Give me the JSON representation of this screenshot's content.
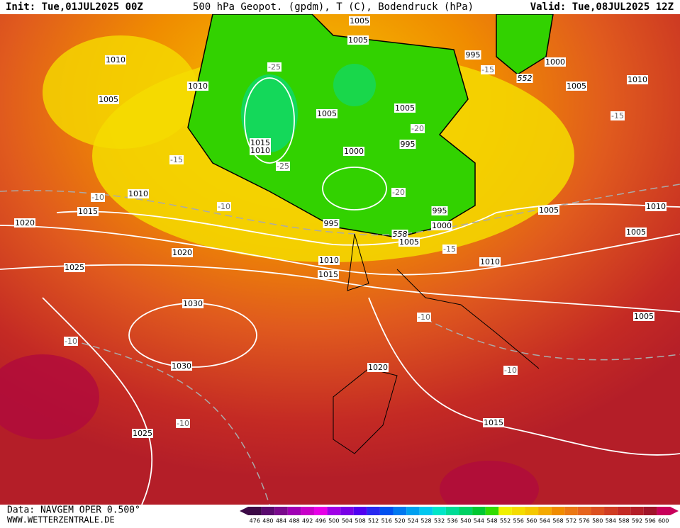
{
  "header": {
    "init": "Init: Tue,01JUL2025 00Z",
    "title": "500 hPa Geopot. (gpdm), T (C), Bodendruck (hPa)",
    "valid": "Valid: Tue,08JUL2025 12Z"
  },
  "map": {
    "isobar_labels": [
      1010,
      1005,
      1010,
      1005,
      1005,
      995,
      1000,
      1005,
      1010,
      1005,
      1015,
      1010,
      1000,
      1005,
      995,
      995,
      1000,
      995,
      1005,
      1010,
      1015,
      1020,
      1020,
      1025,
      1010,
      1015,
      1010,
      1005,
      1010,
      1005,
      1005,
      1030,
      1030,
      1020,
      1015,
      1025
    ],
    "isotherm_labels": [
      -25,
      -20,
      -25,
      -15,
      -10,
      -10,
      -20,
      -15,
      -15,
      -15,
      -10,
      -10,
      -10,
      -10
    ],
    "geopotential_labels": [
      552,
      558
    ]
  },
  "legend": {
    "values": [
      476,
      480,
      484,
      488,
      492,
      496,
      500,
      504,
      508,
      512,
      516,
      520,
      524,
      528,
      532,
      536,
      540,
      544,
      548,
      552,
      556,
      560,
      564,
      568,
      572,
      576,
      580,
      584,
      588,
      592,
      596,
      600
    ],
    "colors": [
      "#3c0a46",
      "#5a0a6e",
      "#7a0a8c",
      "#a000b4",
      "#c800c8",
      "#e600e6",
      "#a000e6",
      "#7800e6",
      "#5000f0",
      "#2828f0",
      "#0050f0",
      "#0078f0",
      "#00a0f0",
      "#00c8f0",
      "#00e6c8",
      "#00dc96",
      "#00d264",
      "#00c832",
      "#32dc00",
      "#f0f000",
      "#f5dc00",
      "#f5c800",
      "#f5aa00",
      "#f08c00",
      "#eb7814",
      "#e6641e",
      "#dc5020",
      "#d03c22",
      "#c42a24",
      "#b41e28",
      "#a0142a",
      "#c8005a"
    ]
  },
  "footer": {
    "source": "Data: NAVGEM OPER 0.500°",
    "site": "WWW.WETTERZENTRALE.DE"
  }
}
